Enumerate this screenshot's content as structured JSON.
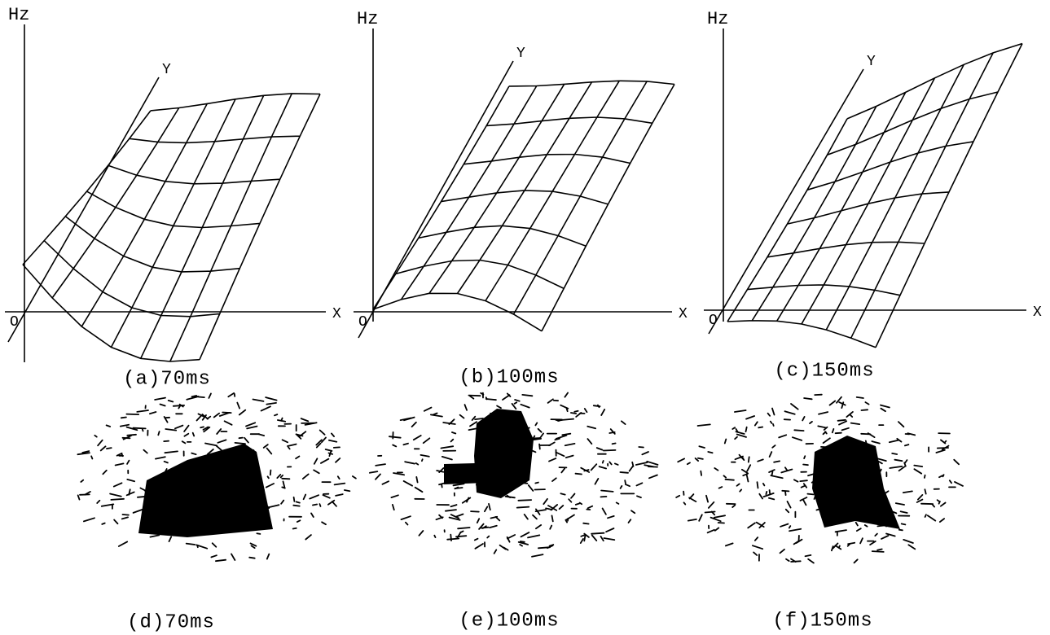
{
  "surface_plots": [
    {
      "z_label": "Hz",
      "y_label": "Y",
      "x_label": "X",
      "origin_label": "O",
      "caption": "(a)70ms"
    },
    {
      "z_label": "Hz",
      "y_label": "Y",
      "x_label": "X",
      "origin_label": "O",
      "caption": "(b)100ms"
    },
    {
      "z_label": "Hz",
      "y_label": "Y",
      "x_label": "X",
      "origin_label": "O",
      "caption": "(c)150ms"
    }
  ],
  "brain_maps": [
    {
      "caption": "(d)70ms"
    },
    {
      "caption": "(e)100ms"
    },
    {
      "caption": "(f)150ms"
    }
  ]
}
